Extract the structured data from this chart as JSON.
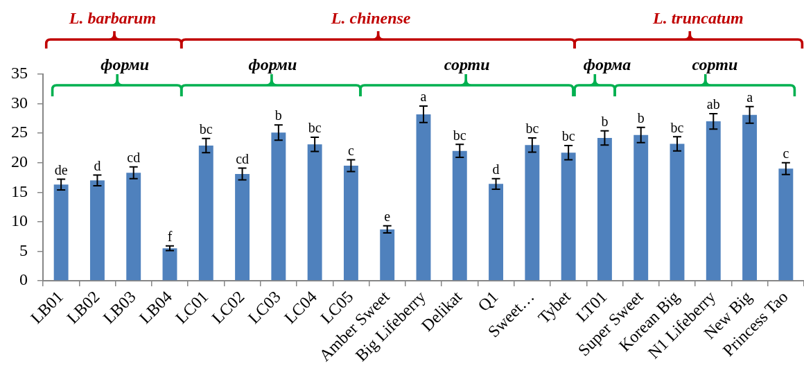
{
  "chart_data": {
    "type": "bar",
    "categories": [
      "LB01",
      "LB02",
      "LB03",
      "LB04",
      "LC01",
      "LC02",
      "LC03",
      "LC04",
      "LC05",
      "Amber Sweet",
      "Big Lifeberry",
      "Delikat",
      "Q1",
      "Sweet…",
      "Tybet",
      "LT01",
      "Super Sweet",
      "Korean Big",
      "N1 Lifeberry",
      "New Big",
      "Princess Tao"
    ],
    "values": [
      16.3,
      17.0,
      18.3,
      5.5,
      22.9,
      18.1,
      25.1,
      23.1,
      19.5,
      8.7,
      28.2,
      22.0,
      16.4,
      23.0,
      21.7,
      24.2,
      24.7,
      23.2,
      27.0,
      28.1,
      19.0
    ],
    "errors": [
      0.9,
      0.9,
      1.0,
      0.4,
      1.2,
      1.0,
      1.3,
      1.2,
      1.0,
      0.6,
      1.4,
      1.1,
      0.9,
      1.2,
      1.2,
      1.2,
      1.3,
      1.2,
      1.3,
      1.4,
      1.0
    ],
    "value_labels": [
      "de",
      "d",
      "cd",
      "f",
      "bc",
      "cd",
      "b",
      "bc",
      "c",
      "e",
      "a",
      "bc",
      "d",
      "bc",
      "bc",
      "b",
      "b",
      "bc",
      "ab",
      "a",
      "c"
    ],
    "color": "#4f81bd",
    "ylim": [
      0,
      35
    ],
    "yticks": [
      0,
      5,
      10,
      15,
      20,
      25,
      30,
      35
    ],
    "annotations": [
      "L. barbarum",
      "L. chinense",
      "L. truncatum",
      "форми",
      "форми",
      "сорти",
      "форма",
      "сорти"
    ]
  }
}
